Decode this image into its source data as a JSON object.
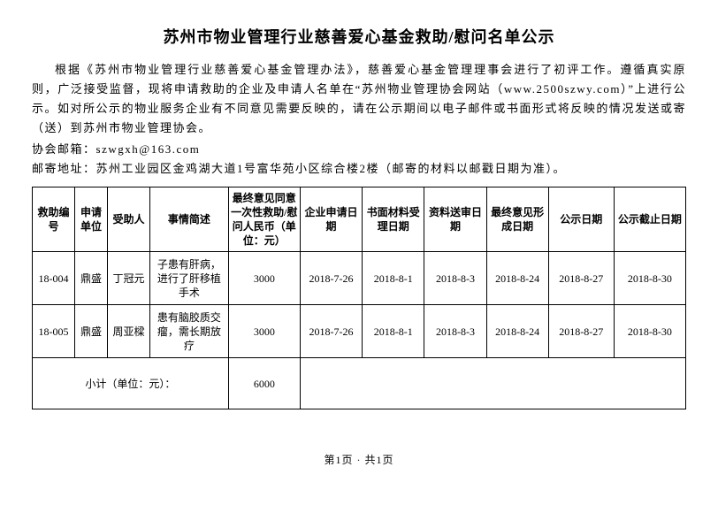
{
  "title": "苏州市物业管理行业慈善爱心基金救助/慰问名单公示",
  "intro": {
    "p1": "根据《苏州市物业管理行业慈善爱心基金管理办法》，慈善爱心基金管理理事会进行了初评工作。遵循真实原则，广泛接受监督，现将申请救助的企业及申请人名单在“苏州物业管理协会网站（www.2500szwy.com）”上进行公示。如对所公示的物业服务企业有不同意见需要反映的，请在公示期间以电子邮件或书面形式将反映的情况发送或寄（送）到苏州市物业管理协会。",
    "email_label": "协会邮箱：",
    "email_value": "szwgxh@163.com",
    "addr_label": "邮寄地址：",
    "addr_value": "苏州工业园区金鸡湖大道1号富华苑小区综合楼2楼（邮寄的材料以邮戳日期为准）。"
  },
  "table": {
    "headers": [
      "救助编号",
      "申请单位",
      "受助人",
      "事情简述",
      "最终意见同意一次性救助/慰问人民币（单位：元）",
      "企业申请日期",
      "书面材料受理日期",
      "资料送审日期",
      "最终意见形成日期",
      "公示日期",
      "公示截止日期"
    ],
    "rows": [
      {
        "id": "18-004",
        "unit": "鼎盛",
        "person": "丁冠元",
        "desc": "子患有肝病，进行了肝移植手术",
        "amount": "3000",
        "d_apply": "2018-7-26",
        "d_receive": "2018-8-1",
        "d_review": "2018-8-3",
        "d_final": "2018-8-24",
        "d_pub": "2018-8-27",
        "d_end": "2018-8-30"
      },
      {
        "id": "18-005",
        "unit": "鼎盛",
        "person": "周亚樑",
        "desc": "患有脑胶质交瘤，需长期放疗",
        "amount": "3000",
        "d_apply": "2018-7-26",
        "d_receive": "2018-8-1",
        "d_review": "2018-8-3",
        "d_final": "2018-8-24",
        "d_pub": "2018-8-27",
        "d_end": "2018-8-30"
      }
    ],
    "subtotal_label": "小计（单位：元）：",
    "subtotal_value": "6000"
  },
  "pager": "第1页 · 共1页"
}
